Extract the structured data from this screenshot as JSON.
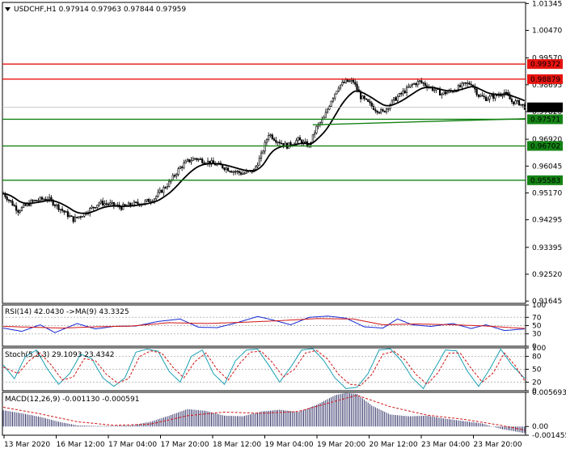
{
  "header": {
    "symbol": "USDCHF,H1",
    "ohlc": [
      "0.97914",
      "0.97963",
      "0.97844",
      "0.97959"
    ]
  },
  "colors": {
    "resistance": "#e8130f",
    "support": "#148214",
    "ma": "#000000",
    "rsi": "#1428d2",
    "rsi_ma": "#d21414",
    "stoch_main": "#1aa0b4",
    "stoch_signal": "#d21414",
    "macd_hist": "#1e1e5a",
    "macd_signal": "#d21414"
  },
  "chart_data": [
    {
      "type": "candlestick",
      "title": "USDCHF,H1",
      "ylim": [
        0.9157,
        1.0138
      ],
      "y_ticks": [
        "1.01345",
        "1.00470",
        "0.99570",
        "0.98695",
        "0.97820",
        "0.96920",
        "0.96045",
        "0.95170",
        "0.94295",
        "0.93395",
        "0.92520",
        "0.91645"
      ],
      "x_ticks": [
        "13 Mar 2020",
        "16 Mar 12:00",
        "17 Mar 04:00",
        "17 Mar 20:00",
        "18 Mar 12:00",
        "19 Mar 04:00",
        "19 Mar 20:00",
        "20 Mar 12:00",
        "23 Mar 04:00",
        "23 Mar 20:00"
      ],
      "price_levels": [
        {
          "value": 0.99372,
          "label": "0.99372",
          "kind": "resistance"
        },
        {
          "value": 0.98879,
          "label": "0.98879",
          "kind": "resistance"
        },
        {
          "value": 0.97571,
          "label": "0.97571",
          "kind": "support"
        },
        {
          "value": 0.96702,
          "label": "0.96702",
          "kind": "support"
        },
        {
          "value": 0.95583,
          "label": "0.95583",
          "kind": "support"
        }
      ],
      "current_price": {
        "value": 0.97959,
        "label": "0.97959"
      },
      "close_path": [
        [
          0,
          0.9515
        ],
        [
          8,
          0.946
        ],
        [
          16,
          0.949
        ],
        [
          24,
          0.95
        ],
        [
          30,
          0.947
        ],
        [
          38,
          0.943
        ],
        [
          44,
          0.945
        ],
        [
          52,
          0.9485
        ],
        [
          58,
          0.948
        ],
        [
          64,
          0.947
        ],
        [
          70,
          0.948
        ],
        [
          76,
          0.9485
        ],
        [
          82,
          0.95
        ],
        [
          90,
          0.955
        ],
        [
          96,
          0.96
        ],
        [
          100,
          0.962
        ],
        [
          104,
          0.963
        ],
        [
          110,
          0.962
        ],
        [
          118,
          0.9605
        ],
        [
          124,
          0.959
        ],
        [
          130,
          0.958
        ],
        [
          136,
          0.959
        ],
        [
          140,
          0.964
        ],
        [
          144,
          0.971
        ],
        [
          148,
          0.969
        ],
        [
          154,
          0.967
        ],
        [
          160,
          0.969
        ],
        [
          166,
          0.967
        ],
        [
          170,
          0.973
        ],
        [
          174,
          0.976
        ],
        [
          178,
          0.982
        ],
        [
          182,
          0.9865
        ],
        [
          186,
          0.988
        ],
        [
          190,
          0.988
        ],
        [
          194,
          0.983
        ],
        [
          198,
          0.981
        ],
        [
          202,
          0.979
        ],
        [
          206,
          0.978
        ],
        [
          212,
          0.982
        ],
        [
          218,
          0.985
        ],
        [
          222,
          0.987
        ],
        [
          226,
          0.988
        ],
        [
          232,
          0.986
        ],
        [
          238,
          0.984
        ],
        [
          244,
          0.985
        ],
        [
          250,
          0.987
        ],
        [
          254,
          0.9875
        ],
        [
          258,
          0.9835
        ],
        [
          262,
          0.9825
        ],
        [
          268,
          0.9835
        ],
        [
          272,
          0.9845
        ],
        [
          276,
          0.9815
        ],
        [
          280,
          0.981
        ],
        [
          283,
          0.9797
        ]
      ]
    },
    {
      "type": "line",
      "title": "RSI(14) 42.0430 ->MA(9) 43.3325",
      "ylim": [
        0,
        100
      ],
      "levels": [
        30,
        50,
        70
      ],
      "y_ticks": [
        "100",
        "70",
        "50",
        "30",
        "0"
      ],
      "series": [
        {
          "name": "RSI(14)",
          "value": "42.0430",
          "path": [
            [
              0,
              44
            ],
            [
              10,
              36
            ],
            [
              20,
              52
            ],
            [
              28,
              33
            ],
            [
              40,
              55
            ],
            [
              50,
              42
            ],
            [
              60,
              48
            ],
            [
              72,
              49
            ],
            [
              84,
              60
            ],
            [
              96,
              66
            ],
            [
              106,
              46
            ],
            [
              116,
              45
            ],
            [
              126,
              56
            ],
            [
              138,
              72
            ],
            [
              146,
              64
            ],
            [
              156,
              52
            ],
            [
              166,
              70
            ],
            [
              176,
              73
            ],
            [
              186,
              68
            ],
            [
              196,
              47
            ],
            [
              206,
              44
            ],
            [
              214,
              66
            ],
            [
              222,
              52
            ],
            [
              232,
              48
            ],
            [
              244,
              55
            ],
            [
              254,
              43
            ],
            [
              262,
              52
            ],
            [
              272,
              38
            ],
            [
              283,
              42
            ]
          ]
        },
        {
          "name": "MA(9)",
          "value": "43.3325",
          "path": [
            [
              0,
              48
            ],
            [
              16,
              46
            ],
            [
              32,
              44
            ],
            [
              50,
              47
            ],
            [
              70,
              49
            ],
            [
              90,
              57
            ],
            [
              110,
              55
            ],
            [
              130,
              58
            ],
            [
              150,
              62
            ],
            [
              170,
              67
            ],
            [
              190,
              66
            ],
            [
              206,
              52
            ],
            [
              224,
              54
            ],
            [
              244,
              52
            ],
            [
              262,
              49
            ],
            [
              283,
              43
            ]
          ]
        }
      ]
    },
    {
      "type": "line",
      "title": "Stoch(5,3,3) 29.1093 23.4342",
      "ylim": [
        0,
        100
      ],
      "levels": [
        20,
        50,
        80
      ],
      "y_ticks": [
        "100",
        "80",
        "50",
        "20",
        "0"
      ],
      "series": [
        {
          "name": "Stoch(5,3,3)",
          "value": "29.1093",
          "path": [
            [
              0,
              60
            ],
            [
              6,
              28
            ],
            [
              12,
              80
            ],
            [
              18,
              95
            ],
            [
              24,
              50
            ],
            [
              30,
              15
            ],
            [
              36,
              40
            ],
            [
              42,
              85
            ],
            [
              48,
              75
            ],
            [
              54,
              30
            ],
            [
              60,
              10
            ],
            [
              66,
              30
            ],
            [
              72,
              90
            ],
            [
              78,
              97
            ],
            [
              84,
              92
            ],
            [
              90,
              45
            ],
            [
              96,
              20
            ],
            [
              102,
              80
            ],
            [
              108,
              95
            ],
            [
              114,
              40
            ],
            [
              120,
              15
            ],
            [
              126,
              70
            ],
            [
              132,
              95
            ],
            [
              138,
              97
            ],
            [
              144,
              60
            ],
            [
              150,
              20
            ],
            [
              156,
              55
            ],
            [
              162,
              95
            ],
            [
              168,
              98
            ],
            [
              174,
              70
            ],
            [
              180,
              30
            ],
            [
              186,
              5
            ],
            [
              192,
              8
            ],
            [
              198,
              40
            ],
            [
              204,
              95
            ],
            [
              210,
              98
            ],
            [
              216,
              70
            ],
            [
              222,
              30
            ],
            [
              228,
              5
            ],
            [
              234,
              50
            ],
            [
              240,
              95
            ],
            [
              246,
              93
            ],
            [
              252,
              45
            ],
            [
              258,
              10
            ],
            [
              264,
              50
            ],
            [
              270,
              97
            ],
            [
              276,
              60
            ],
            [
              283,
              29
            ]
          ]
        },
        {
          "name": "signal",
          "value": "23.4342",
          "path": [
            [
              0,
              55
            ],
            [
              8,
              40
            ],
            [
              14,
              70
            ],
            [
              20,
              88
            ],
            [
              26,
              60
            ],
            [
              32,
              25
            ],
            [
              38,
              32
            ],
            [
              44,
              75
            ],
            [
              50,
              70
            ],
            [
              56,
              38
            ],
            [
              62,
              18
            ],
            [
              68,
              28
            ],
            [
              74,
              80
            ],
            [
              80,
              93
            ],
            [
              86,
              88
            ],
            [
              92,
              55
            ],
            [
              98,
              30
            ],
            [
              104,
              68
            ],
            [
              110,
              88
            ],
            [
              116,
              50
            ],
            [
              122,
              25
            ],
            [
              128,
              62
            ],
            [
              134,
              90
            ],
            [
              140,
              92
            ],
            [
              146,
              66
            ],
            [
              152,
              32
            ],
            [
              158,
              50
            ],
            [
              164,
              88
            ],
            [
              170,
              94
            ],
            [
              176,
              74
            ],
            [
              182,
              38
            ],
            [
              188,
              15
            ],
            [
              194,
              12
            ],
            [
              200,
              38
            ],
            [
              206,
              85
            ],
            [
              212,
              92
            ],
            [
              218,
              72
            ],
            [
              224,
              38
            ],
            [
              230,
              15
            ],
            [
              236,
              42
            ],
            [
              242,
              88
            ],
            [
              248,
              88
            ],
            [
              254,
              52
            ],
            [
              260,
              20
            ],
            [
              266,
              42
            ],
            [
              272,
              88
            ],
            [
              278,
              58
            ],
            [
              283,
              23
            ]
          ]
        }
      ]
    },
    {
      "type": "bar",
      "title": "MACD(12,26,9) -0.001130 -0.000591",
      "ylim": [
        -0.00145,
        0.00569
      ],
      "y_ticks": [
        "0.005693",
        "0.00",
        "-0.001455"
      ],
      "series": [
        {
          "name": "MACD(12,26,9)",
          "value": "-0.001130",
          "path": [
            [
              0,
              0.0027
            ],
            [
              10,
              0.0022
            ],
            [
              20,
              0.0016
            ],
            [
              30,
              0.0008
            ],
            [
              40,
              0.0002
            ],
            [
              50,
              0.0001
            ],
            [
              60,
              0.0001
            ],
            [
              70,
              0.0002
            ],
            [
              80,
              0.0008
            ],
            [
              90,
              0.0018
            ],
            [
              100,
              0.0029
            ],
            [
              110,
              0.0026
            ],
            [
              120,
              0.0018
            ],
            [
              130,
              0.0017
            ],
            [
              140,
              0.0025
            ],
            [
              150,
              0.0028
            ],
            [
              160,
              0.0024
            ],
            [
              170,
              0.0036
            ],
            [
              180,
              0.0052
            ],
            [
              186,
              0.0056
            ],
            [
              192,
              0.0054
            ],
            [
              200,
              0.0035
            ],
            [
              210,
              0.002
            ],
            [
              220,
              0.0017
            ],
            [
              230,
              0.0018
            ],
            [
              240,
              0.0013
            ],
            [
              250,
              0.0009
            ],
            [
              260,
              0.0005
            ],
            [
              270,
              -0.0004
            ],
            [
              283,
              -0.0011
            ]
          ]
        },
        {
          "name": "signal",
          "value": "-0.000591",
          "path": [
            [
              0,
              0.0032
            ],
            [
              20,
              0.0021
            ],
            [
              40,
              0.0008
            ],
            [
              60,
              0.0002
            ],
            [
              80,
              0.0004
            ],
            [
              100,
              0.0018
            ],
            [
              120,
              0.0024
            ],
            [
              140,
              0.0022
            ],
            [
              160,
              0.0025
            ],
            [
              180,
              0.0042
            ],
            [
              192,
              0.0052
            ],
            [
              210,
              0.0033
            ],
            [
              230,
              0.0019
            ],
            [
              250,
              0.0012
            ],
            [
              270,
              0.0002
            ],
            [
              283,
              -0.0006
            ]
          ]
        }
      ]
    }
  ]
}
